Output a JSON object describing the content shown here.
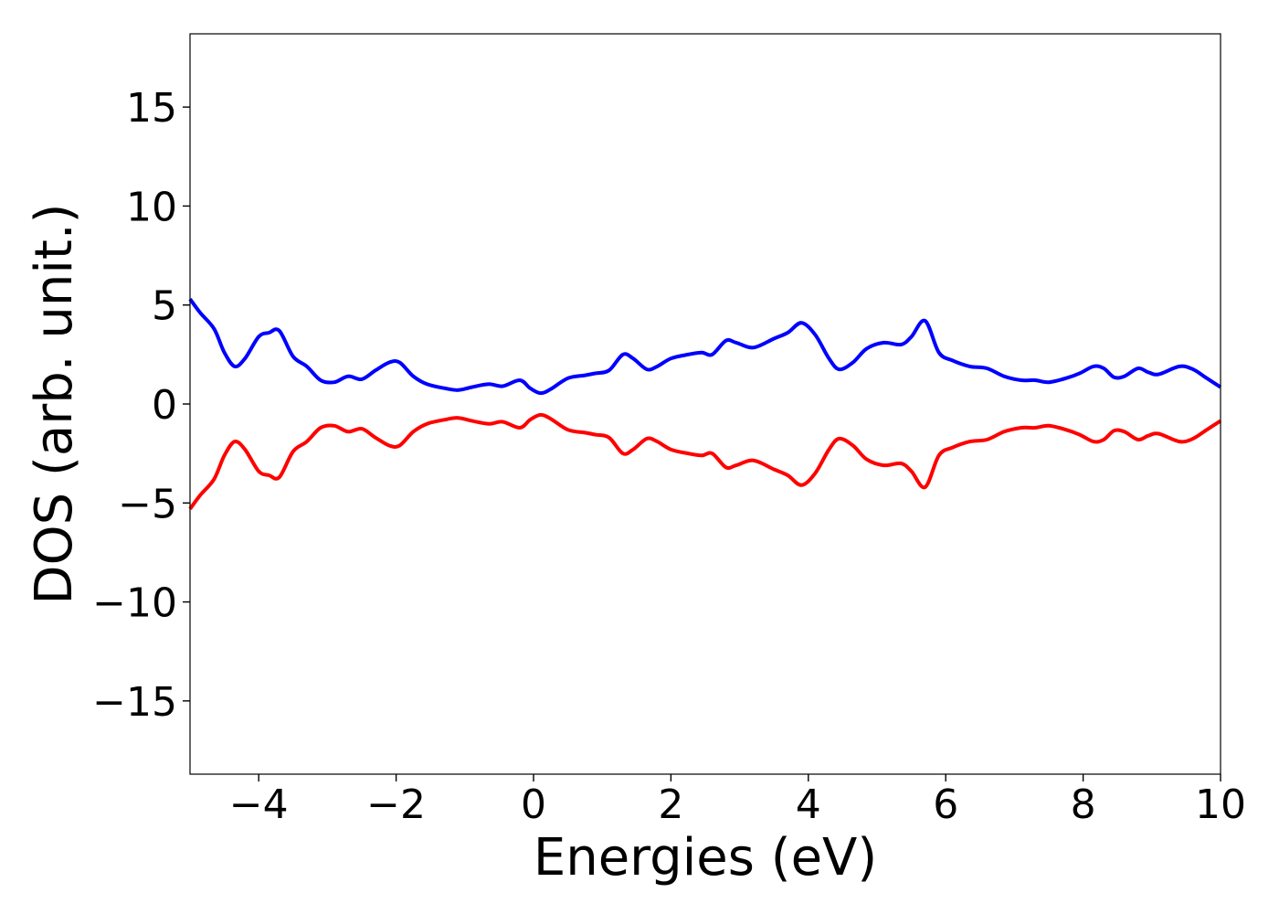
{
  "chart_data": {
    "type": "line",
    "title": "",
    "xlabel": "Energies (eV)",
    "ylabel": "DOS (arb. unit.)",
    "xlim": [
      -5,
      10
    ],
    "ylim": [
      -18.7,
      18.7
    ],
    "xticks": [
      -4,
      -2,
      0,
      2,
      4,
      6,
      8,
      10
    ],
    "yticks": [
      -15,
      -10,
      -5,
      0,
      5,
      10,
      15
    ],
    "xtick_labels": [
      "−4",
      "−2",
      "0",
      "2",
      "4",
      "6",
      "8",
      "10"
    ],
    "ytick_labels": [
      "−15",
      "−10",
      "−5",
      "0",
      "5",
      "10",
      "15"
    ],
    "grid": false,
    "legend": "none",
    "series": [
      {
        "color": "#0000ff",
        "points": [
          [
            -5.0,
            5.3
          ],
          [
            -4.85,
            4.6
          ],
          [
            -4.65,
            3.8
          ],
          [
            -4.5,
            2.6
          ],
          [
            -4.35,
            1.9
          ],
          [
            -4.2,
            2.3
          ],
          [
            -4.0,
            3.4
          ],
          [
            -3.85,
            3.6
          ],
          [
            -3.7,
            3.7
          ],
          [
            -3.5,
            2.4
          ],
          [
            -3.3,
            1.9
          ],
          [
            -3.1,
            1.2
          ],
          [
            -2.9,
            1.1
          ],
          [
            -2.7,
            1.4
          ],
          [
            -2.5,
            1.25
          ],
          [
            -2.3,
            1.7
          ],
          [
            -2.1,
            2.1
          ],
          [
            -1.95,
            2.1
          ],
          [
            -1.75,
            1.4
          ],
          [
            -1.55,
            1.0
          ],
          [
            -1.3,
            0.8
          ],
          [
            -1.1,
            0.7
          ],
          [
            -0.9,
            0.85
          ],
          [
            -0.65,
            1.0
          ],
          [
            -0.45,
            0.9
          ],
          [
            -0.2,
            1.2
          ],
          [
            -0.05,
            0.8
          ],
          [
            0.1,
            0.55
          ],
          [
            0.25,
            0.75
          ],
          [
            0.5,
            1.3
          ],
          [
            0.75,
            1.45
          ],
          [
            0.9,
            1.55
          ],
          [
            1.1,
            1.7
          ],
          [
            1.3,
            2.5
          ],
          [
            1.45,
            2.3
          ],
          [
            1.65,
            1.75
          ],
          [
            1.8,
            1.9
          ],
          [
            2.0,
            2.3
          ],
          [
            2.25,
            2.5
          ],
          [
            2.45,
            2.6
          ],
          [
            2.6,
            2.5
          ],
          [
            2.8,
            3.2
          ],
          [
            2.95,
            3.1
          ],
          [
            3.2,
            2.85
          ],
          [
            3.5,
            3.3
          ],
          [
            3.7,
            3.6
          ],
          [
            3.9,
            4.1
          ],
          [
            4.1,
            3.5
          ],
          [
            4.3,
            2.3
          ],
          [
            4.45,
            1.75
          ],
          [
            4.65,
            2.1
          ],
          [
            4.85,
            2.8
          ],
          [
            5.1,
            3.1
          ],
          [
            5.35,
            3.0
          ],
          [
            5.5,
            3.4
          ],
          [
            5.7,
            4.2
          ],
          [
            5.9,
            2.6
          ],
          [
            6.1,
            2.2
          ],
          [
            6.35,
            1.9
          ],
          [
            6.6,
            1.8
          ],
          [
            6.85,
            1.4
          ],
          [
            7.1,
            1.2
          ],
          [
            7.3,
            1.2
          ],
          [
            7.5,
            1.1
          ],
          [
            7.75,
            1.3
          ],
          [
            7.95,
            1.55
          ],
          [
            8.15,
            1.9
          ],
          [
            8.3,
            1.8
          ],
          [
            8.45,
            1.35
          ],
          [
            8.6,
            1.4
          ],
          [
            8.8,
            1.8
          ],
          [
            8.95,
            1.6
          ],
          [
            9.1,
            1.5
          ],
          [
            9.4,
            1.9
          ],
          [
            9.6,
            1.75
          ],
          [
            9.8,
            1.3
          ],
          [
            10.0,
            0.85
          ]
        ]
      },
      {
        "color": "#ff0000",
        "points": [
          [
            -5.0,
            -5.3
          ],
          [
            -4.85,
            -4.6
          ],
          [
            -4.65,
            -3.8
          ],
          [
            -4.5,
            -2.6
          ],
          [
            -4.35,
            -1.9
          ],
          [
            -4.2,
            -2.3
          ],
          [
            -4.0,
            -3.4
          ],
          [
            -3.85,
            -3.6
          ],
          [
            -3.7,
            -3.7
          ],
          [
            -3.5,
            -2.4
          ],
          [
            -3.3,
            -1.9
          ],
          [
            -3.1,
            -1.2
          ],
          [
            -2.9,
            -1.1
          ],
          [
            -2.7,
            -1.4
          ],
          [
            -2.5,
            -1.25
          ],
          [
            -2.3,
            -1.7
          ],
          [
            -2.1,
            -2.1
          ],
          [
            -1.95,
            -2.1
          ],
          [
            -1.75,
            -1.4
          ],
          [
            -1.55,
            -1.0
          ],
          [
            -1.3,
            -0.8
          ],
          [
            -1.1,
            -0.7
          ],
          [
            -0.9,
            -0.85
          ],
          [
            -0.65,
            -1.0
          ],
          [
            -0.45,
            -0.9
          ],
          [
            -0.2,
            -1.2
          ],
          [
            -0.05,
            -0.8
          ],
          [
            0.1,
            -0.55
          ],
          [
            0.25,
            -0.75
          ],
          [
            0.5,
            -1.3
          ],
          [
            0.75,
            -1.45
          ],
          [
            0.9,
            -1.55
          ],
          [
            1.1,
            -1.7
          ],
          [
            1.3,
            -2.5
          ],
          [
            1.45,
            -2.3
          ],
          [
            1.65,
            -1.75
          ],
          [
            1.8,
            -1.9
          ],
          [
            2.0,
            -2.3
          ],
          [
            2.25,
            -2.5
          ],
          [
            2.45,
            -2.6
          ],
          [
            2.6,
            -2.5
          ],
          [
            2.8,
            -3.2
          ],
          [
            2.95,
            -3.1
          ],
          [
            3.2,
            -2.85
          ],
          [
            3.5,
            -3.3
          ],
          [
            3.7,
            -3.6
          ],
          [
            3.9,
            -4.1
          ],
          [
            4.1,
            -3.5
          ],
          [
            4.3,
            -2.3
          ],
          [
            4.45,
            -1.75
          ],
          [
            4.65,
            -2.1
          ],
          [
            4.85,
            -2.8
          ],
          [
            5.1,
            -3.1
          ],
          [
            5.35,
            -3.0
          ],
          [
            5.5,
            -3.4
          ],
          [
            5.7,
            -4.2
          ],
          [
            5.9,
            -2.6
          ],
          [
            6.1,
            -2.2
          ],
          [
            6.35,
            -1.9
          ],
          [
            6.6,
            -1.8
          ],
          [
            6.85,
            -1.4
          ],
          [
            7.1,
            -1.2
          ],
          [
            7.3,
            -1.2
          ],
          [
            7.5,
            -1.1
          ],
          [
            7.75,
            -1.3
          ],
          [
            7.95,
            -1.55
          ],
          [
            8.15,
            -1.9
          ],
          [
            8.3,
            -1.8
          ],
          [
            8.45,
            -1.35
          ],
          [
            8.6,
            -1.4
          ],
          [
            8.8,
            -1.8
          ],
          [
            8.95,
            -1.6
          ],
          [
            9.1,
            -1.5
          ],
          [
            9.4,
            -1.9
          ],
          [
            9.6,
            -1.75
          ],
          [
            9.8,
            -1.3
          ],
          [
            10.0,
            -0.85
          ]
        ]
      }
    ]
  }
}
